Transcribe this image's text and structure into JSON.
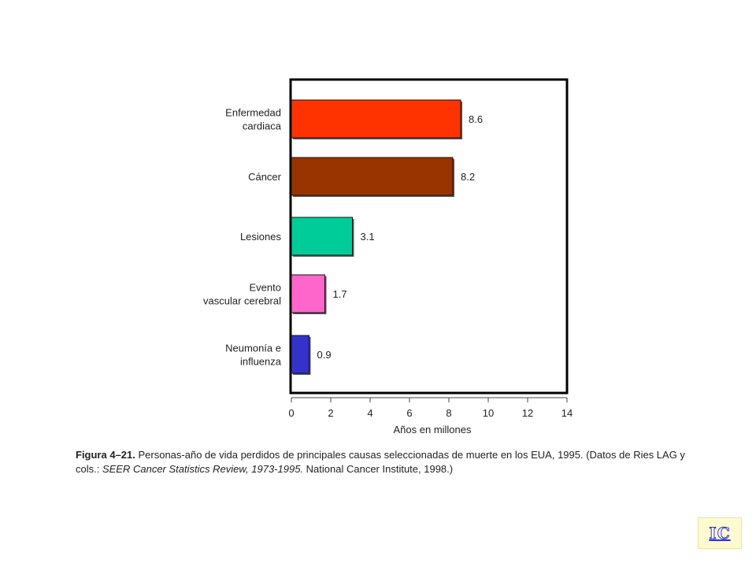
{
  "chart_data": {
    "type": "bar",
    "orientation": "horizontal",
    "categories": [
      [
        "Enfermedad",
        "cardiaca"
      ],
      [
        "Cáncer"
      ],
      [
        "Lesiones"
      ],
      [
        "Evento",
        "vascular cerebral"
      ],
      [
        "Neumonía e",
        "influenza"
      ]
    ],
    "values": [
      8.6,
      8.2,
      3.1,
      1.7,
      0.9
    ],
    "value_labels": [
      "8.6",
      "8.2",
      "3.1",
      "1.7",
      "0.9"
    ],
    "colors": [
      "#ff3300",
      "#993300",
      "#00cc99",
      "#ff66cc",
      "#3333cc"
    ],
    "xlabel": "Años en millones",
    "xlim": [
      0,
      14
    ],
    "xticks": [
      "0",
      "2",
      "4",
      "6",
      "8",
      "10",
      "12",
      "14"
    ],
    "grid": false
  },
  "caption": {
    "figure_label": "Figura 4–21.",
    "text_main": " Personas-año de vida perdidos de principales causas seleccionadas de muerte en los EUA, 1995. (Datos de Ries LAG y cols.: ",
    "text_italic": "SEER Cancer Statistics Review, 1973-1995.",
    "text_end": " National Cancer Institute, 1998.)"
  },
  "nav": {
    "ic_label": "IC"
  }
}
